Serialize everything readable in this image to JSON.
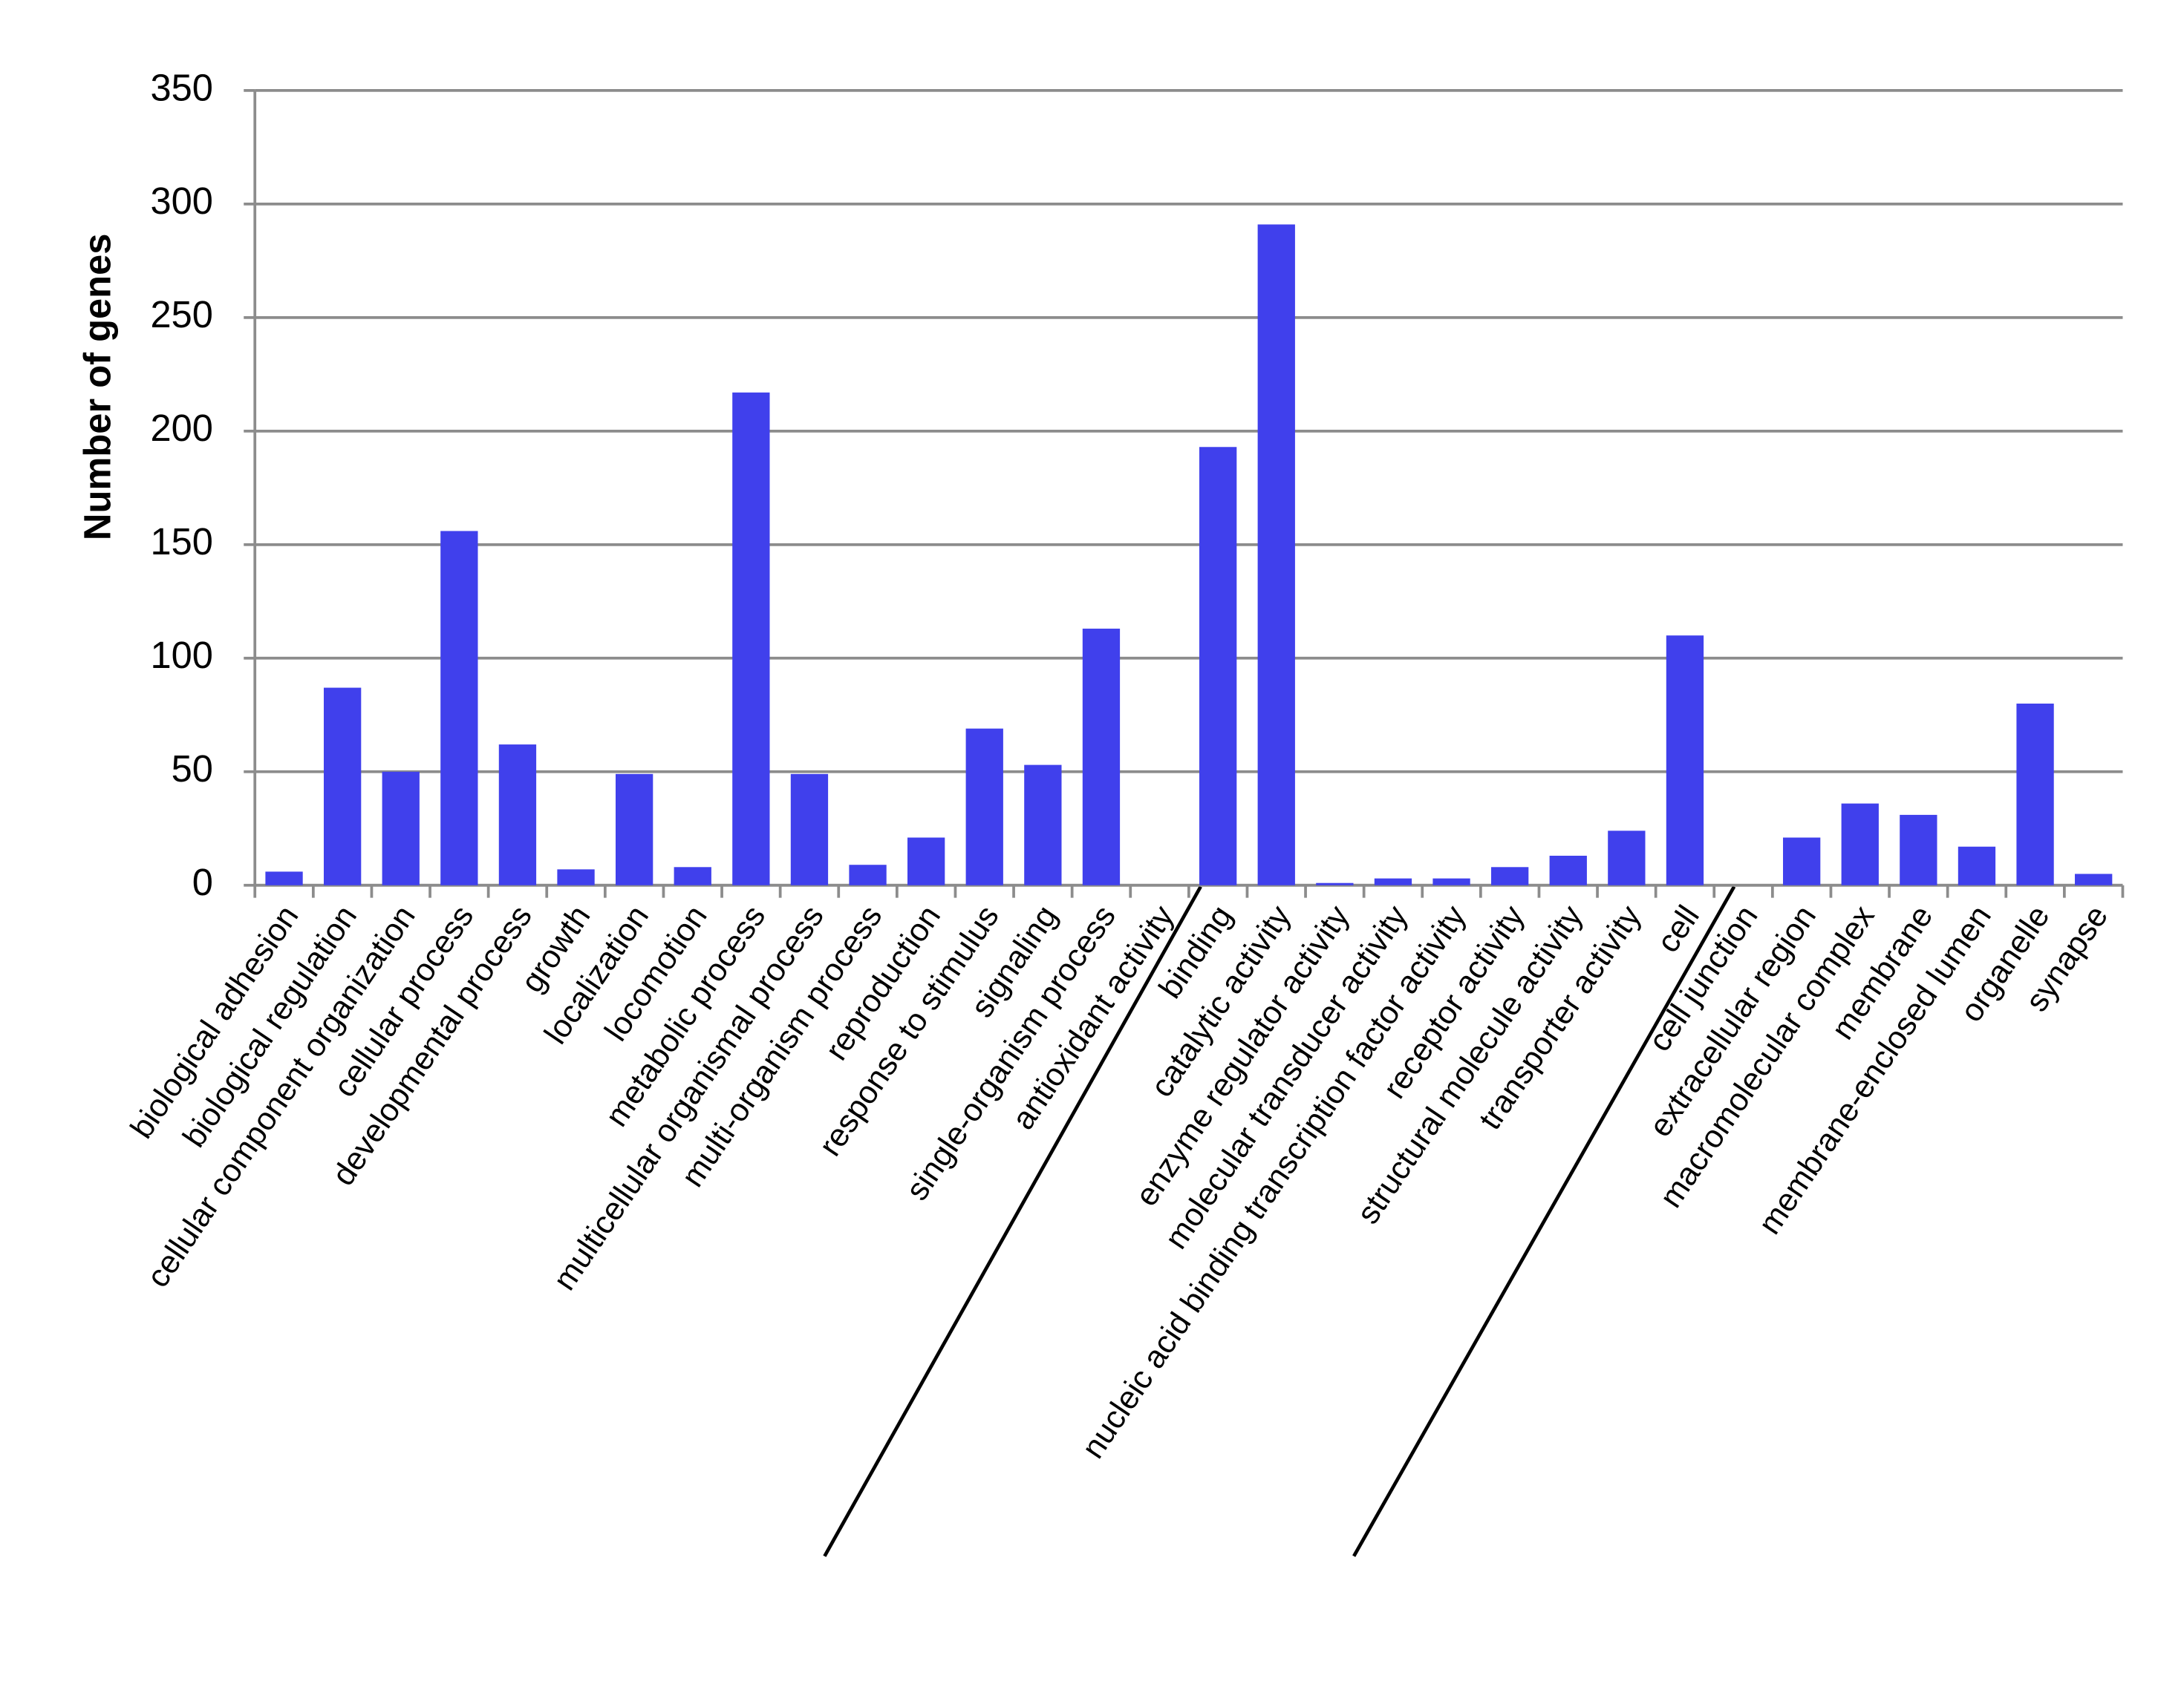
{
  "chart_data": {
    "type": "bar",
    "y_label": "Number of genes",
    "categories": [
      "biological adhesion",
      "biological regulation",
      "cellular component organization",
      "cellular process",
      "developmental process",
      "growth",
      "localization",
      "locomotion",
      "metabolic process",
      "multicellular organismal process",
      "multi-organism process",
      "reproduction",
      "response to stimulus",
      "signaling",
      "single-organism process",
      "antioxidant activity",
      "binding",
      "catalytic activity",
      "enzyme regulator activity",
      "molecular transducer activity",
      "nucleic acid binding transcription factor activity",
      "receptor activity",
      "structural molecule activity",
      "transporter activity",
      "cell",
      "cell junction",
      "extracellular region",
      "macromolecular complex",
      "membrane",
      "membrane-enclosed lumen",
      "organelle",
      "synapse"
    ],
    "values": [
      6,
      87,
      50,
      156,
      62,
      7,
      49,
      8,
      217,
      49,
      9,
      21,
      69,
      53,
      113,
      0,
      193,
      291,
      1,
      3,
      3,
      8,
      13,
      24,
      110,
      0,
      21,
      36,
      31,
      17,
      80,
      5
    ],
    "color": "#4040ec",
    "ylim": [
      0,
      350
    ],
    "yticks": [
      0,
      50,
      100,
      150,
      200,
      250,
      300,
      350
    ],
    "grid": true
  }
}
